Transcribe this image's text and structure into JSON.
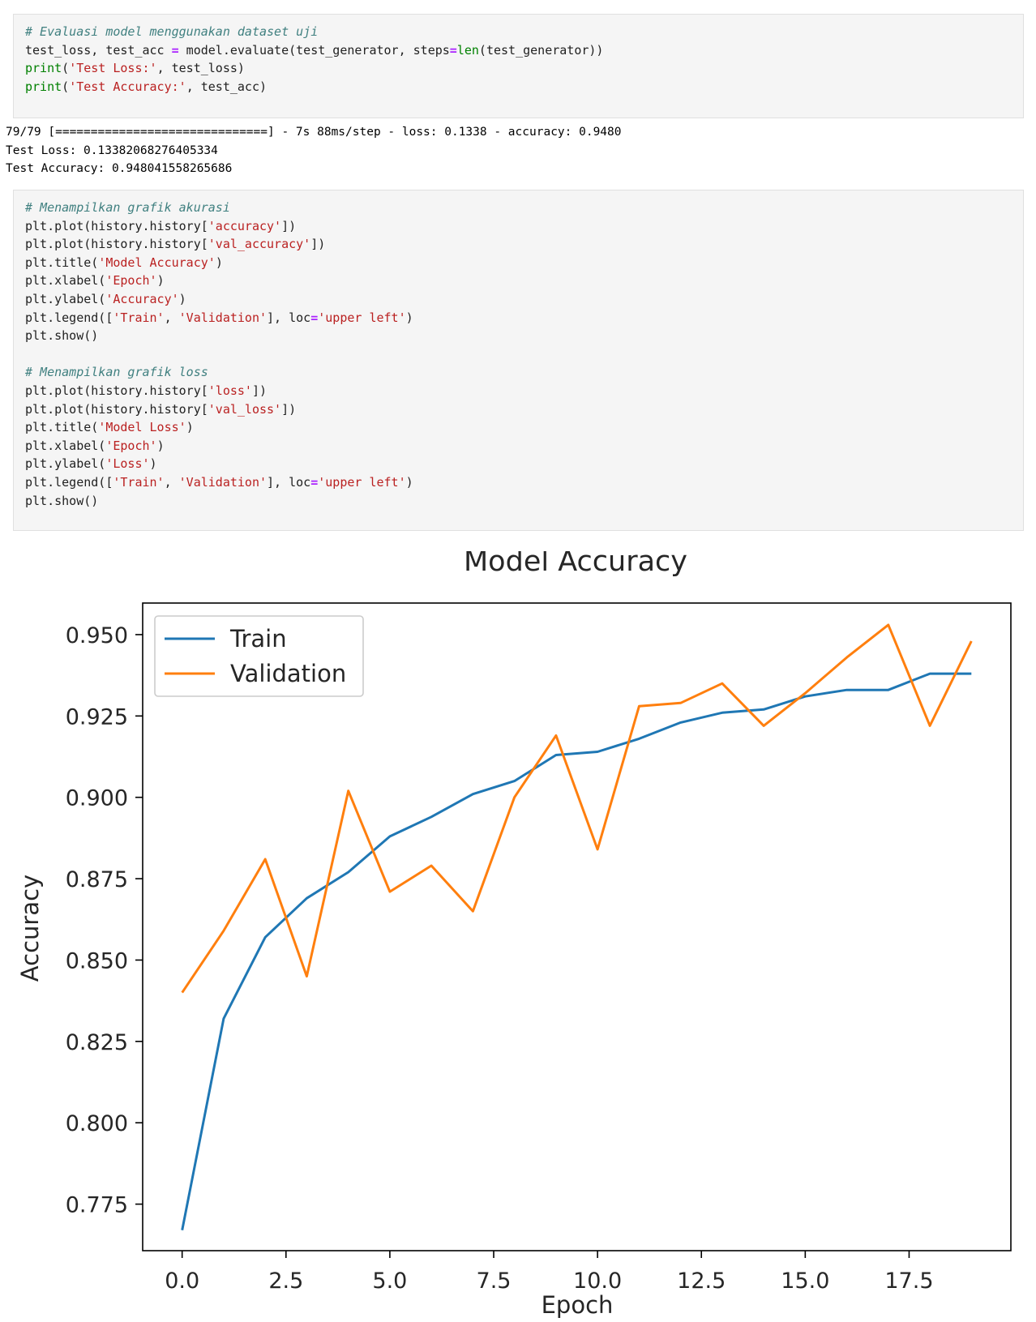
{
  "cell1": {
    "lines": [
      [
        {
          "t": "# Evaluasi model menggunakan dataset uji",
          "c": "comment"
        }
      ],
      [
        {
          "t": "test_loss, test_acc ",
          "c": ""
        },
        {
          "t": "=",
          "c": "op"
        },
        {
          "t": " model.evaluate(test_generator, steps",
          "c": ""
        },
        {
          "t": "=",
          "c": "op"
        },
        {
          "t": "len",
          "c": "builtin"
        },
        {
          "t": "(test_generator))",
          "c": ""
        }
      ],
      [
        {
          "t": "print",
          "c": "builtin"
        },
        {
          "t": "(",
          "c": ""
        },
        {
          "t": "'Test Loss:'",
          "c": "string"
        },
        {
          "t": ", test_loss)",
          "c": ""
        }
      ],
      [
        {
          "t": "print",
          "c": "builtin"
        },
        {
          "t": "(",
          "c": ""
        },
        {
          "t": "'Test Accuracy:'",
          "c": "string"
        },
        {
          "t": ", test_acc)",
          "c": ""
        }
      ]
    ]
  },
  "output": {
    "progress_line": "79/79 [==============================] - 7s 88ms/step - loss: 0.1338 - accuracy: 0.9480",
    "test_loss_line": "Test Loss: 0.13382068276405334",
    "test_accuracy_line": "Test Accuracy: 0.948041558265686"
  },
  "cell2": {
    "lines": [
      [
        {
          "t": "# Menampilkan grafik akurasi",
          "c": "comment"
        }
      ],
      [
        {
          "t": "plt.plot(history.history[",
          "c": ""
        },
        {
          "t": "'accuracy'",
          "c": "string"
        },
        {
          "t": "])",
          "c": ""
        }
      ],
      [
        {
          "t": "plt.plot(history.history[",
          "c": ""
        },
        {
          "t": "'val_accuracy'",
          "c": "string"
        },
        {
          "t": "])",
          "c": ""
        }
      ],
      [
        {
          "t": "plt.title(",
          "c": ""
        },
        {
          "t": "'Model Accuracy'",
          "c": "string"
        },
        {
          "t": ")",
          "c": ""
        }
      ],
      [
        {
          "t": "plt.xlabel(",
          "c": ""
        },
        {
          "t": "'Epoch'",
          "c": "string"
        },
        {
          "t": ")",
          "c": ""
        }
      ],
      [
        {
          "t": "plt.ylabel(",
          "c": ""
        },
        {
          "t": "'Accuracy'",
          "c": "string"
        },
        {
          "t": ")",
          "c": ""
        }
      ],
      [
        {
          "t": "plt.legend([",
          "c": ""
        },
        {
          "t": "'Train'",
          "c": "string"
        },
        {
          "t": ", ",
          "c": ""
        },
        {
          "t": "'Validation'",
          "c": "string"
        },
        {
          "t": "], loc",
          "c": ""
        },
        {
          "t": "=",
          "c": "op"
        },
        {
          "t": "'upper left'",
          "c": "string"
        },
        {
          "t": ")",
          "c": ""
        }
      ],
      [
        {
          "t": "plt.show()",
          "c": ""
        }
      ],
      [
        {
          "t": "",
          "c": ""
        }
      ],
      [
        {
          "t": "# Menampilkan grafik loss",
          "c": "comment"
        }
      ],
      [
        {
          "t": "plt.plot(history.history[",
          "c": ""
        },
        {
          "t": "'loss'",
          "c": "string"
        },
        {
          "t": "])",
          "c": ""
        }
      ],
      [
        {
          "t": "plt.plot(history.history[",
          "c": ""
        },
        {
          "t": "'val_loss'",
          "c": "string"
        },
        {
          "t": "])",
          "c": ""
        }
      ],
      [
        {
          "t": "plt.title(",
          "c": ""
        },
        {
          "t": "'Model Loss'",
          "c": "string"
        },
        {
          "t": ")",
          "c": ""
        }
      ],
      [
        {
          "t": "plt.xlabel(",
          "c": ""
        },
        {
          "t": "'Epoch'",
          "c": "string"
        },
        {
          "t": ")",
          "c": ""
        }
      ],
      [
        {
          "t": "plt.ylabel(",
          "c": ""
        },
        {
          "t": "'Loss'",
          "c": "string"
        },
        {
          "t": ")",
          "c": ""
        }
      ],
      [
        {
          "t": "plt.legend([",
          "c": ""
        },
        {
          "t": "'Train'",
          "c": "string"
        },
        {
          "t": ", ",
          "c": ""
        },
        {
          "t": "'Validation'",
          "c": "string"
        },
        {
          "t": "], loc",
          "c": ""
        },
        {
          "t": "=",
          "c": "op"
        },
        {
          "t": "'upper left'",
          "c": "string"
        },
        {
          "t": ")",
          "c": ""
        }
      ],
      [
        {
          "t": "plt.show()",
          "c": ""
        }
      ]
    ]
  },
  "chart_data": {
    "type": "line",
    "title": "Model Accuracy",
    "xlabel": "Epoch",
    "ylabel": "Accuracy",
    "x": [
      0,
      1,
      2,
      3,
      4,
      5,
      6,
      7,
      8,
      9,
      10,
      11,
      12,
      13,
      14,
      15,
      16,
      17,
      18,
      19
    ],
    "series": [
      {
        "name": "Train",
        "color": "#1f77b4",
        "values": [
          0.767,
          0.832,
          0.857,
          0.869,
          0.877,
          0.888,
          0.894,
          0.901,
          0.905,
          0.913,
          0.914,
          0.918,
          0.923,
          0.926,
          0.927,
          0.931,
          0.933,
          0.933,
          0.938,
          0.938
        ]
      },
      {
        "name": "Validation",
        "color": "#ff7f0e",
        "values": [
          0.84,
          0.859,
          0.881,
          0.845,
          0.902,
          0.871,
          0.879,
          0.865,
          0.9,
          0.919,
          0.884,
          0.928,
          0.929,
          0.935,
          0.922,
          0.932,
          0.943,
          0.953,
          0.922,
          0.948
        ]
      }
    ],
    "xlim": [
      -0.95,
      19.95
    ],
    "ylim": [
      0.7607,
      0.9597
    ],
    "xticks": [
      0.0,
      2.5,
      5.0,
      7.5,
      10.0,
      12.5,
      15.0,
      17.5
    ],
    "xtick_labels": [
      "0.0",
      "2.5",
      "5.0",
      "7.5",
      "10.0",
      "12.5",
      "15.0",
      "17.5"
    ],
    "yticks": [
      0.775,
      0.8,
      0.825,
      0.85,
      0.875,
      0.9,
      0.925,
      0.95
    ],
    "ytick_labels": [
      "0.775",
      "0.800",
      "0.825",
      "0.850",
      "0.875",
      "0.900",
      "0.925",
      "0.950"
    ],
    "legend_position": "upper left",
    "grid": false
  }
}
